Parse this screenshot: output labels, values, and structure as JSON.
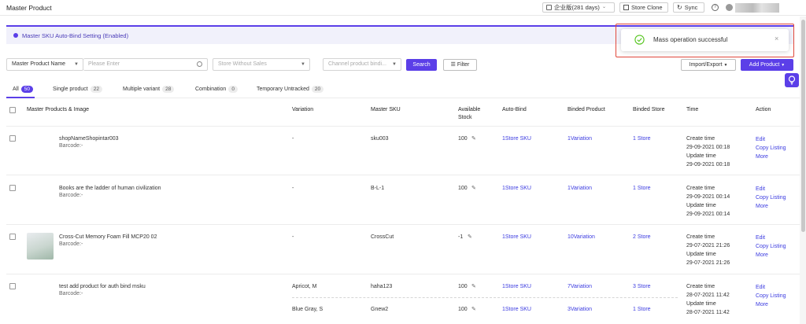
{
  "header": {
    "title": "Master Product",
    "plan_label": "企业版(281 days)",
    "store_clone_label": "Store Clone",
    "sync_label": "Sync"
  },
  "banner": {
    "text": "Master SKU Auto-Bind Setting (Enabled)"
  },
  "filters": {
    "search_type": "Master Product Name",
    "search_placeholder": "Please Enter",
    "store_placeholder": "Store Without Sales",
    "channel_placeholder": "Channel product bindi...",
    "search_button": "Search",
    "filter_button": "Filter",
    "import_export": "Import/Export",
    "add_product": "Add Product"
  },
  "tabs": [
    {
      "label": "All",
      "count": "50"
    },
    {
      "label": "Single product",
      "count": "22"
    },
    {
      "label": "Multiple variant",
      "count": "28"
    },
    {
      "label": "Combination",
      "count": "0"
    },
    {
      "label": "Temporary Untracked",
      "count": "20"
    }
  ],
  "table": {
    "headers": {
      "product": "Master Products & Image",
      "variation": "Variation",
      "sku": "Master SKU",
      "stock_line1": "Available",
      "stock_line2": "Stock",
      "autobind": "Auto-Bind",
      "binded_product": "Binded Product",
      "binded_store": "Binded Store",
      "time": "Time",
      "action": "Action"
    },
    "rows": [
      {
        "name": "shopNameShopintar003",
        "barcode": "Barcode:-",
        "variation": "-",
        "sku": "sku003",
        "stock": "100",
        "autobind": "1Store SKU",
        "binded_product": "1Variation",
        "binded_store": "1 Store",
        "create_label": "Create time",
        "create_time": "29-09-2021 00:18",
        "update_label": "Update time",
        "update_time": "29-09-2021 00:18",
        "actions": [
          "Edit",
          "Copy Listing",
          "More"
        ]
      },
      {
        "name": "Books are the ladder of human civilization",
        "barcode": "Barcode:-",
        "variation": "-",
        "sku": "B-L-1",
        "stock": "100",
        "autobind": "1Store SKU",
        "binded_product": "1Variation",
        "binded_store": "1 Store",
        "create_label": "Create time",
        "create_time": "29-09-2021 00:14",
        "update_label": "Update time",
        "update_time": "29-09-2021 00:14",
        "actions": [
          "Edit",
          "Copy Listing",
          "More"
        ]
      },
      {
        "name": "Cross-Cut Memory Foam Fill MCP20 02",
        "barcode": "Barcode:-",
        "variation": "-",
        "sku": "CrossCut",
        "stock": "-1",
        "autobind": "1Store SKU",
        "binded_product": "10Variation",
        "binded_store": "2 Store",
        "create_label": "Create time",
        "create_time": "29-07-2021 21:26",
        "update_label": "Update time",
        "update_time": "29-07-2021 21:26",
        "actions": [
          "Edit",
          "Copy Listing",
          "More"
        ]
      },
      {
        "name": "test add product for auth bind msku",
        "barcode": "Barcode:-",
        "variation": "Apricot, M",
        "sku": "haha123",
        "stock": "100",
        "autobind": "1Store SKU",
        "binded_product": "7Variation",
        "binded_store": "3 Store",
        "create_label": "Create time",
        "create_time": "28-07-2021 11:42",
        "update_label": "Update time",
        "update_time": "28-07-2021 11:42",
        "actions": [
          "Edit",
          "Copy Listing",
          "More"
        ]
      }
    ],
    "subrow": {
      "variation": "Blue Gray, S",
      "sku": "Gnew2",
      "stock": "100",
      "autobind": "1Store SKU",
      "binded_product": "3Variation",
      "binded_store": "1 Store"
    }
  },
  "toast": {
    "message": "Mass operation successful"
  },
  "colors": {
    "accent": "#5b3fe8",
    "link": "#3b3be0",
    "success": "#52c41a",
    "alert_frame": "#e0473a"
  }
}
